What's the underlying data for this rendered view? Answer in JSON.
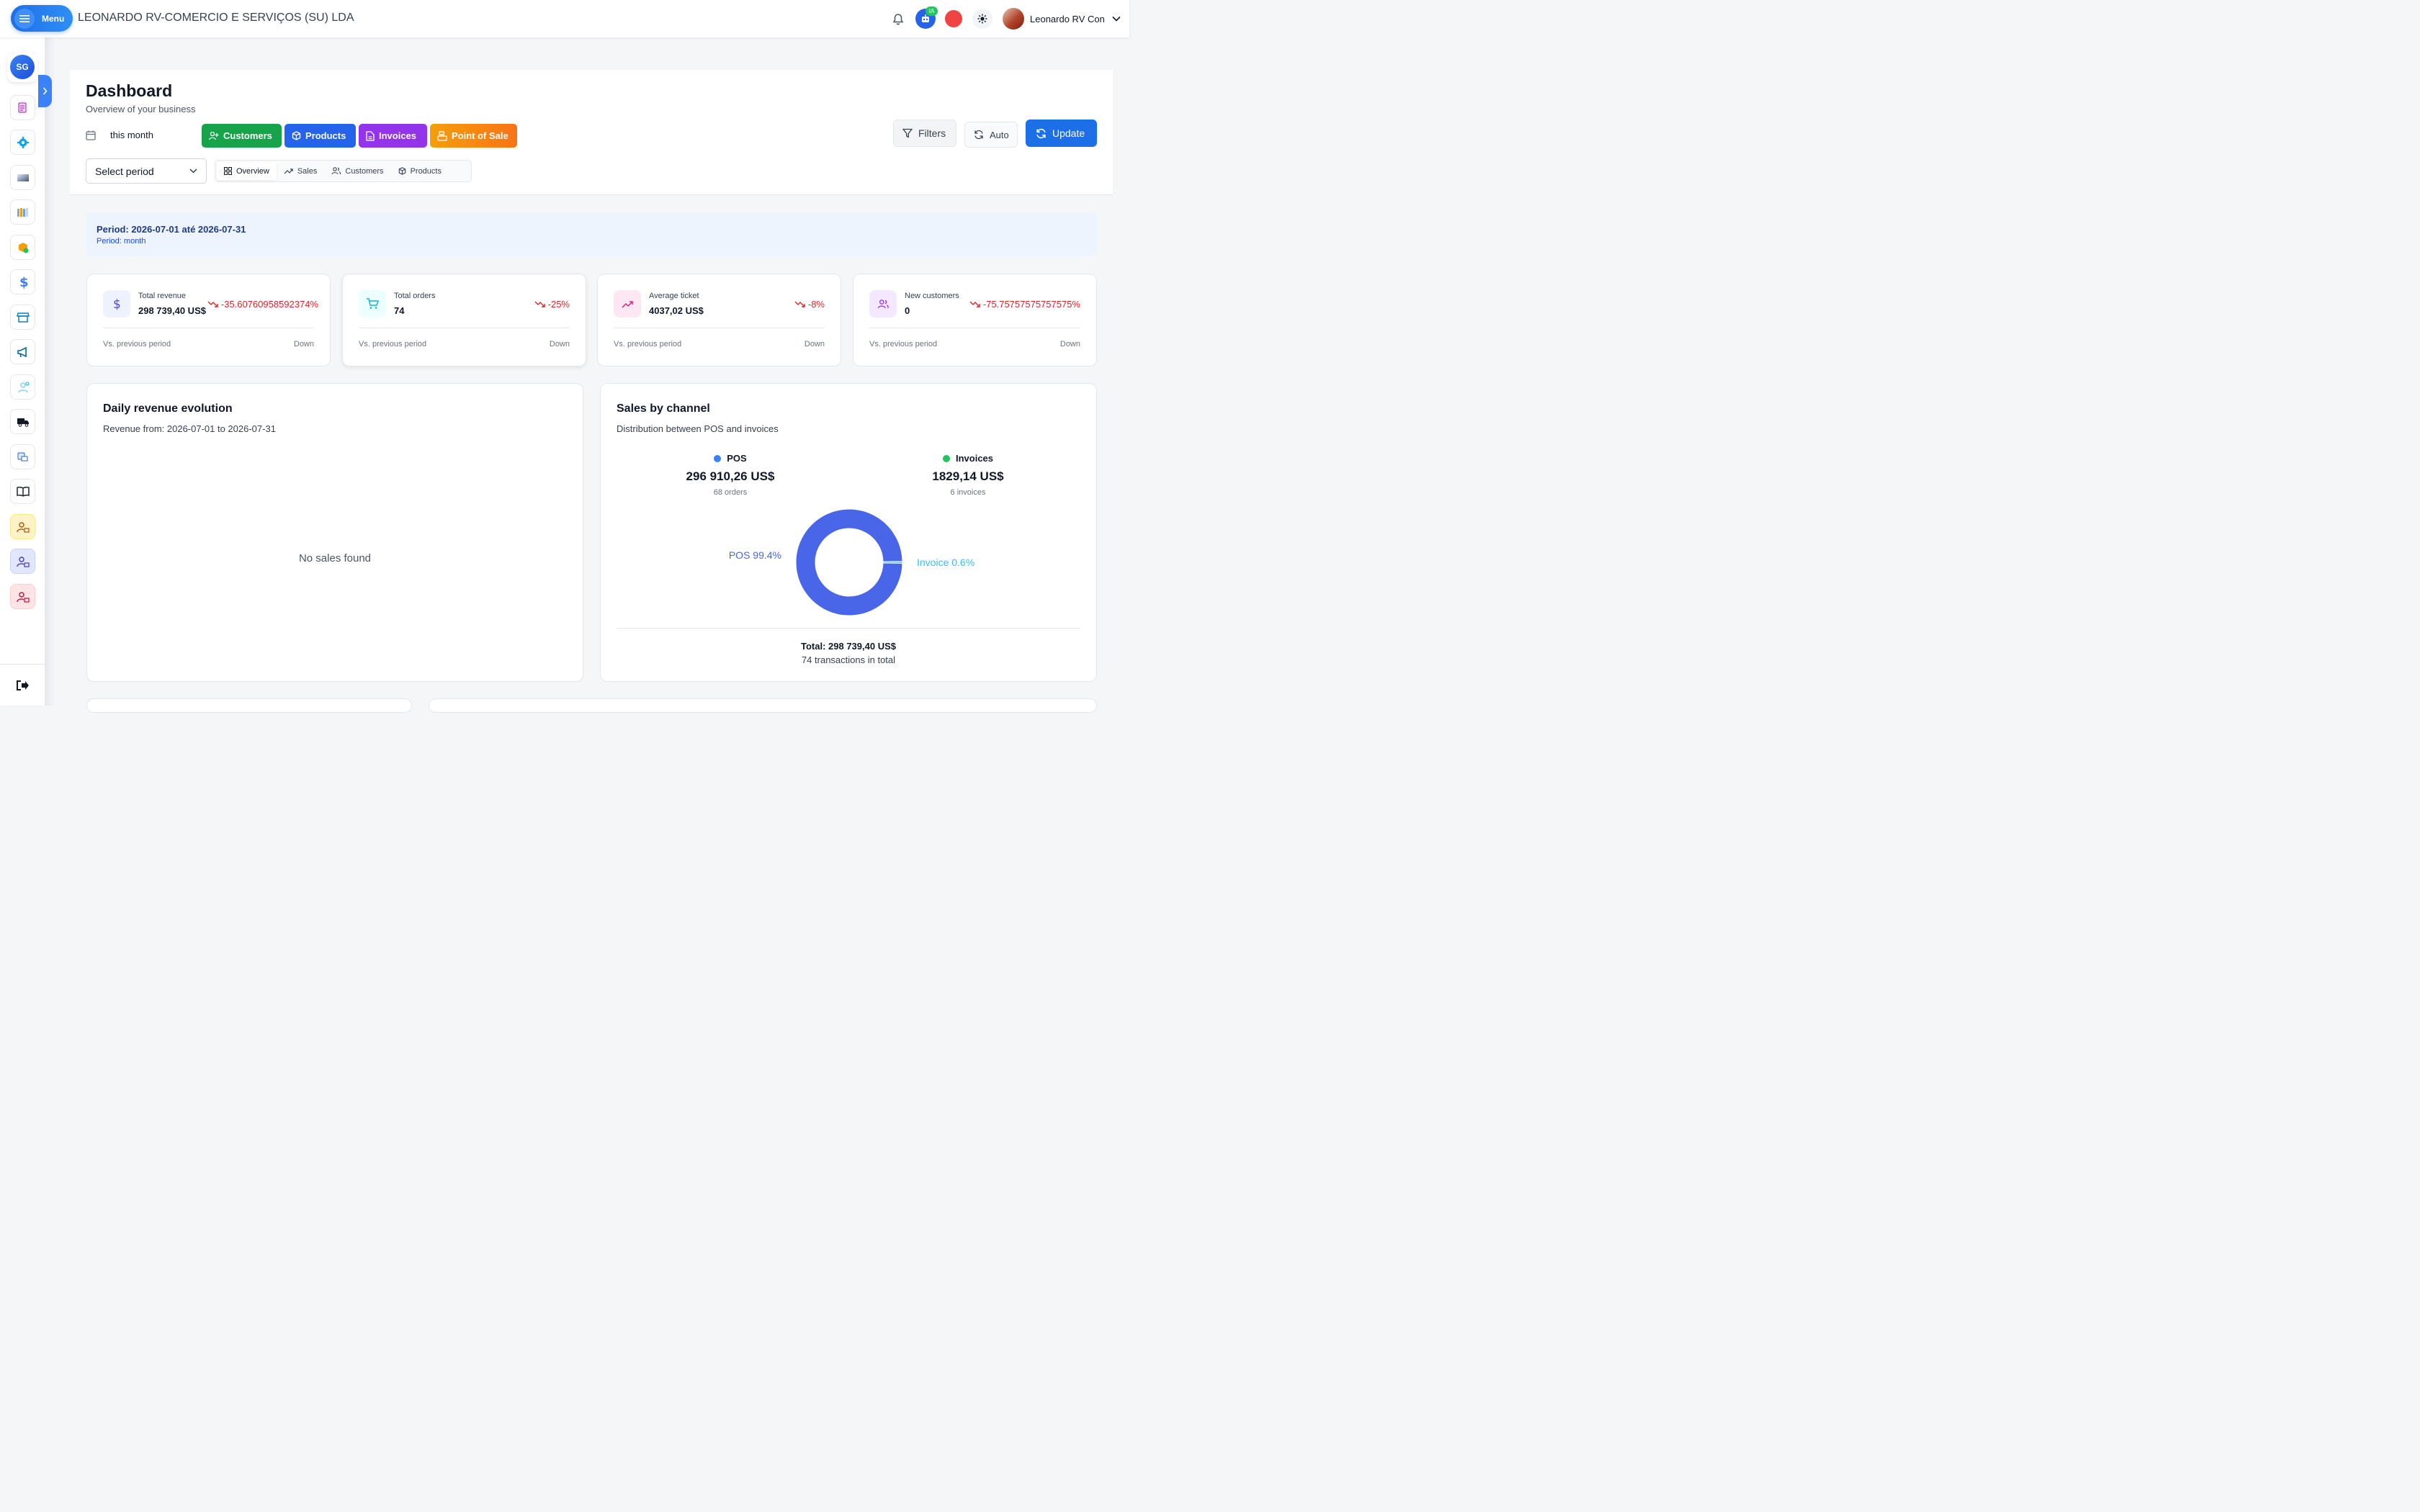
{
  "topbar": {
    "menu_label": "Menu",
    "company": "LEONARDO RV-COMERCIO E SERVIÇOS (SU) LDA",
    "ai_badge": "IA",
    "user_name": "Leonardo RV Con",
    "status_color": "#ef4444"
  },
  "sidebar": {
    "initials": "SG",
    "items": [
      "document-icon",
      "settings-icon",
      "gradient-icon",
      "books-icon",
      "box-icon",
      "dollar-icon",
      "store-icon",
      "megaphone-icon",
      "team-icon",
      "truck-icon",
      "delivery-icon",
      "book-icon",
      "user-lock-icon",
      "user-lock-icon",
      "user-lock-icon"
    ]
  },
  "header": {
    "title": "Dashboard",
    "subtitle": "Overview of your business",
    "date_range": "this month",
    "quick_actions": [
      {
        "label": "Customers",
        "color": "#16a34a"
      },
      {
        "label": "Products",
        "color": "#2563eb"
      },
      {
        "label": "Invoices",
        "color": "#9333ea"
      },
      {
        "label": "Point of Sale",
        "color": "#f97316"
      }
    ],
    "filters_label": "Filters",
    "auto_label": "Auto",
    "update_label": "Update",
    "period_placeholder": "Select period",
    "tabs": [
      "Overview",
      "Sales",
      "Customers",
      "Products"
    ]
  },
  "period_box": {
    "line1": "Period: 2026-07-01 até 2026-07-31",
    "line2": "Period: month"
  },
  "stats": [
    {
      "label": "Total revenue",
      "value": "298 739,40 US$",
      "change": "-35.60760958592374%",
      "vs": "Vs. previous period",
      "trend": "Down",
      "accent": "#4f46e5"
    },
    {
      "label": "Total orders",
      "value": "74",
      "change": "-25%",
      "vs": "Vs. previous period",
      "trend": "Down",
      "accent": "#06b6d4"
    },
    {
      "label": "Average ticket",
      "value": "4037,02 US$",
      "change": "-8%",
      "vs": "Vs. previous period",
      "trend": "Down",
      "accent": "#db2777"
    },
    {
      "label": "New customers",
      "value": "0",
      "change": "-75.75757575757575%",
      "vs": "Vs. previous period",
      "trend": "Down",
      "accent": "#9333ea"
    }
  ],
  "revenue_panel": {
    "title": "Daily revenue evolution",
    "subtitle": "Revenue from: 2026-07-01 to 2026-07-31",
    "empty": "No sales found"
  },
  "channel_panel": {
    "title": "Sales by channel",
    "subtitle": "Distribution between POS and invoices",
    "pos_label": "POS",
    "pos_value": "296 910,26 US$",
    "pos_count": "68 orders",
    "inv_label": "Invoices",
    "inv_value": "1829,14 US$",
    "inv_count": "6 invoices",
    "total": "Total: 298 739,40 US$",
    "transactions": "74 transactions in total"
  },
  "chart_data": {
    "type": "pie",
    "categories": [
      "POS",
      "Invoice"
    ],
    "values": [
      99.4,
      0.6
    ],
    "labels": [
      "POS 99.4%",
      "Invoice 0.6%"
    ],
    "colors": [
      "#4a66e8",
      "#38bdf8"
    ]
  }
}
